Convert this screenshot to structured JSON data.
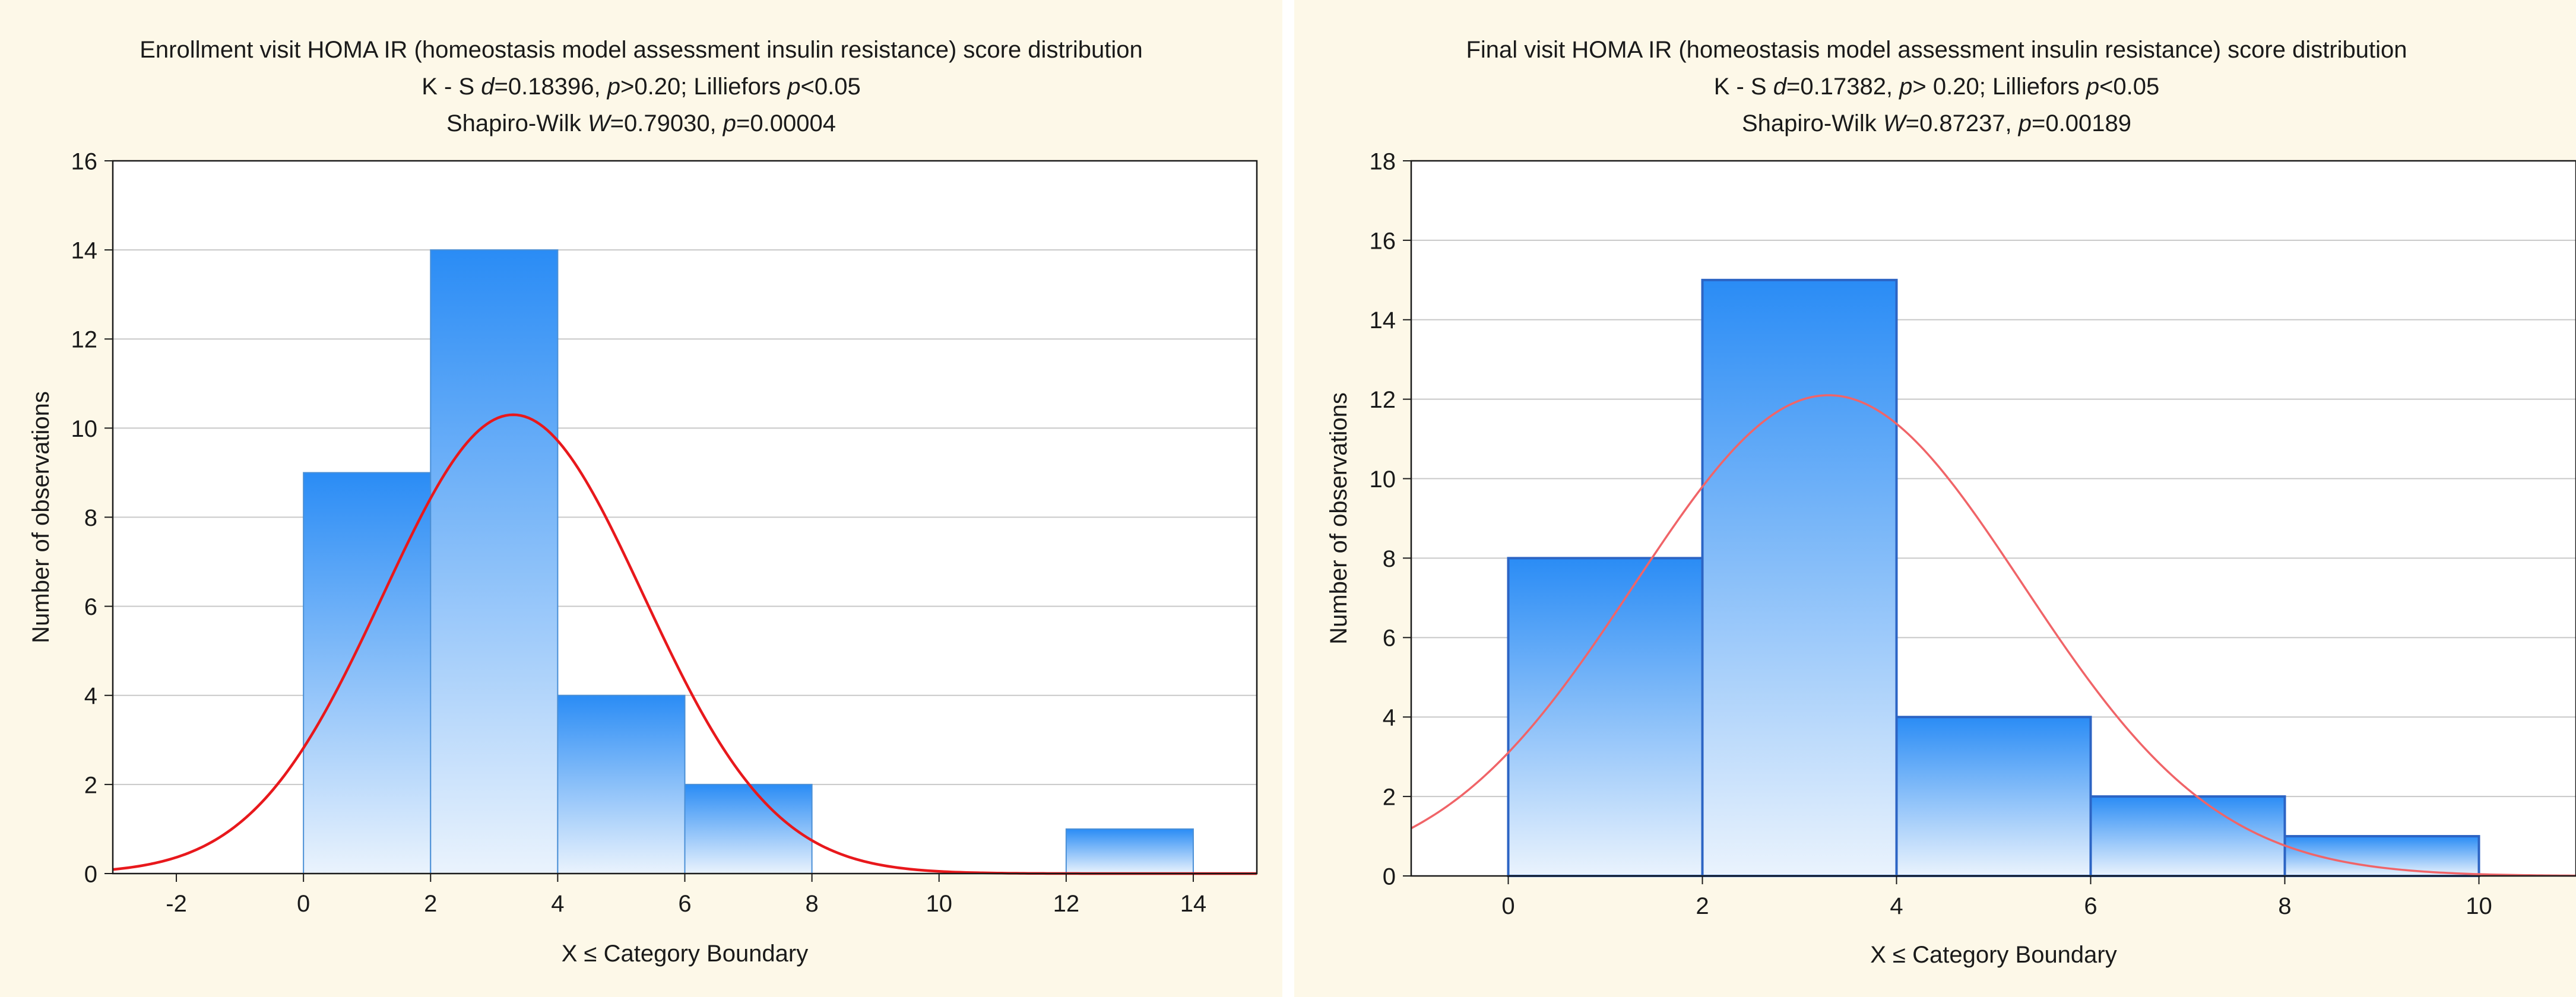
{
  "colors": {
    "panel_background": "#fdf8e8",
    "plot_background": "#ffffff",
    "bar_fill_top": "#2a8cf5",
    "bar_fill_bottom": "#eaf3fd",
    "bar_stroke_left": "#4a8fd6",
    "bar_stroke_right": "#2c64c4",
    "curve": "#e8181c",
    "curve_right": "#f06468",
    "grid": "#c8c8c8",
    "text": "#1a1a1a"
  },
  "chart_data": [
    {
      "type": "bar",
      "subtype": "histogram-with-normal-fit",
      "title": "Enrollment visit HOMA IR (homeostasis model assessment insulin resistance) score distribution",
      "subtitle_line1": {
        "pre": "K - S ",
        "i1": "d",
        "m1": "=0.18396, ",
        "i2": "p",
        "m2": ">0.20; Lilliefors ",
        "i3": "p",
        "post": "<0.05"
      },
      "subtitle_line2": {
        "pre": "Shapiro-Wilk ",
        "i1": "W",
        "m1": "=0.79030, ",
        "i2": "p",
        "post": "=0.00004"
      },
      "xlabel": "X ≤ Category Boundary",
      "ylabel": "Number of observations",
      "xlim": [
        -3,
        15
      ],
      "ylim": [
        0,
        16
      ],
      "xticks": [
        -2,
        0,
        2,
        4,
        6,
        8,
        10,
        12,
        14
      ],
      "yticks": [
        0,
        2,
        4,
        6,
        8,
        10,
        12,
        14,
        16
      ],
      "grid": true,
      "bins": [
        {
          "from": 0,
          "to": 2,
          "count": 9
        },
        {
          "from": 2,
          "to": 4,
          "count": 14
        },
        {
          "from": 4,
          "to": 6,
          "count": 4
        },
        {
          "from": 6,
          "to": 8,
          "count": 2
        },
        {
          "from": 8,
          "to": 10,
          "count": 0
        },
        {
          "from": 10,
          "to": 12,
          "count": 0
        },
        {
          "from": 12,
          "to": 14,
          "count": 1
        }
      ],
      "normal_fit": {
        "mean": 3.3,
        "sd": 2.05,
        "peak": 10.3
      }
    },
    {
      "type": "bar",
      "subtype": "histogram-with-normal-fit",
      "title": "Final visit HOMA IR (homeostasis model assessment insulin resistance) score distribution",
      "subtitle_line1": {
        "pre": "K - S ",
        "i1": "d",
        "m1": "=0.17382, ",
        "i2": "p",
        "m2": "> 0.20; Lilliefors ",
        "i3": "p",
        "post": "<0.05"
      },
      "subtitle_line2": {
        "pre": "Shapiro-Wilk ",
        "i1": "W",
        "m1": "=0.87237, ",
        "i2": "p",
        "post": "=0.00189"
      },
      "xlabel": "X ≤ Category Boundary",
      "ylabel": "Number of observations",
      "xlim": [
        -1,
        11
      ],
      "ylim": [
        0,
        18
      ],
      "xticks": [
        0,
        2,
        4,
        6,
        8,
        10
      ],
      "yticks": [
        0,
        2,
        4,
        6,
        8,
        10,
        12,
        14,
        16,
        18
      ],
      "grid": true,
      "bins": [
        {
          "from": 0,
          "to": 2,
          "count": 8
        },
        {
          "from": 2,
          "to": 4,
          "count": 15
        },
        {
          "from": 4,
          "to": 6,
          "count": 4
        },
        {
          "from": 6,
          "to": 8,
          "count": 2
        },
        {
          "from": 8,
          "to": 10,
          "count": 1
        }
      ],
      "normal_fit": {
        "mean": 3.3,
        "sd": 2.0,
        "peak": 12.1
      }
    }
  ]
}
